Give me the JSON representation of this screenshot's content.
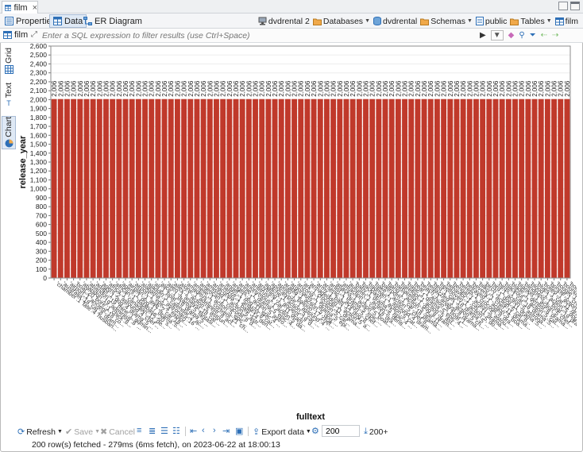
{
  "editor": {
    "tab_label": "film",
    "close_glyph": "×"
  },
  "subtabs": [
    {
      "label": "Properties",
      "icon": "properties-icon"
    },
    {
      "label": "Data",
      "icon": "data-grid-icon"
    },
    {
      "label": "ER Diagram",
      "icon": "er-diagram-icon"
    }
  ],
  "breadcrumbs": [
    {
      "label": "dvdrental 2",
      "icon": "connection-icon",
      "dropdown": false
    },
    {
      "label": "Databases",
      "icon": "folder-icon",
      "dropdown": true
    },
    {
      "label": "dvdrental",
      "icon": "database-icon",
      "dropdown": false
    },
    {
      "label": "Schemas",
      "icon": "folder-icon",
      "dropdown": true
    },
    {
      "label": "public",
      "icon": "schema-icon",
      "dropdown": false
    },
    {
      "label": "Tables",
      "icon": "folder-icon",
      "dropdown": true
    },
    {
      "label": "film",
      "icon": "table-icon",
      "dropdown": false
    }
  ],
  "filter": {
    "table_label": "film",
    "placeholder": "Enter a SQL expression to filter results (use Ctrl+Space)"
  },
  "sidetabs": [
    {
      "label": "Grid",
      "icon": "grid-icon",
      "active": false
    },
    {
      "label": "Text",
      "icon": "text-icon",
      "active": false
    },
    {
      "label": "Chart",
      "icon": "chart-icon",
      "active": true
    }
  ],
  "chart_data": {
    "type": "bar",
    "ylabel": "release_year",
    "xlabel": "fulltext",
    "ylim": [
      0,
      2600
    ],
    "ytick_step": 100,
    "bar_color": "#c0392b",
    "data_label": "2,006",
    "categories": [
      "'chamber':1 'fate':4 'husband':11 'italian':1 'monkey':16 'moo",
      "'australia':18 'cat':8 'drama':5 'epic':4 'explor':12 'moos",
      "'airport':1 'ancient':18 'confront':14 'epic':4 'girl':11 'moos",
      "'boat':20 'bore':1 'chick':8 'database':2 'moos':12 'reject",
      "'abandon':19 'administr':8 'batman':15 'beauti':4 'cat':11",
      "'abandon':19 'mine':1 'administr':8 'ancient':20 'crocodil':1",
      "'adapt':1 'dog':4 'drama':5 'fight':13 'moos':16 'mine",
      "'agent':2 'astound':4 'chef':16 'crocodil':11 'crocodil':12",
      "'africa':1 'canadian':12 'dentist':8 'epic':4 'fight':15",
      "'african':1 'database':20 'sumo':8 'hunt':2 'secret':14",
      "'agent':1 'dog':17 'drama':5 'fight':13 'mad':11 'scientist':12",
      "'airplan':1 'awe':2 'car':18 'escape':15 'lumberjack':11",
      "'airport':1 'epic':4 'explor':14 'frisbe':11 'girl':7",
      "'alabama':1 'astronaut':16 'baloon':17 'car':11 'epic':4",
      "'aladdin':1 'calendar':2 'action':5 'ancient':19 'fight':14",
      "'ali':1 'boat':19 'drama':5 'dentist':8 'epic':4 'forens':17",
      "'alice':1 'drama':5 'fantasia':2 'hunter':8 'moos':16",
      "'alien':1 'analyst':18 'cat':11 'database':2 'epic':4",
      "'alley':1 'action':5 'astound':4 'chase':10 'explor':14",
      "'alone':1 'administr':8 'action':5 'escape':15 'epic':4",
      "'amadeus':1 'convent':21 'chef':14 'dog':8 'epic':4",
      "'amelie':1 'action':5 'epic':4 'girl':7 'monkey':16",
      "'american':1 'crocodil':8 'drama':5 'fight':13 'mine':11",
      "'amistad':1 'action':5 'astronaut':16 'boat':19 'epic':4",
      "'anaconda':1 'battl':14 'dentist':8 'drama':5 'feminist':11",
      "'analyze':1 'analyst':8 'cat':11 'drama':5 'hunter':2",
      "'angel':1 'dog':11 'epic':4 'explor':14 'moos':7",
      "'angels':1 'action':5 'astronaut':8 'boat':19 'fight':14",
      "'annie':1 'drama':5 'epic':4 'forens':11 'girl':7",
      "'anonymous':1 'action':5 'database':8 'epic':4 'monkey':16",
      "'antitrust':1 'cat':11 'drama':5 'epic':4 'mine':8",
      "'anything':1 'ancient':19 'dentist':8 'fight':14 'moos':11",
      "'apache':1 'action':5 'car':18 'epic':4 'hunter':8",
      "'apocalypse':1 'astound':4 'drama':5 'explor':14 'girl':11",
      "'apollo':1 'baloon':17 'chef':8 'epic':4 'moos':11",
      "'arabia':1 'action':5 'dog':11 'feminist':8 'fight':14",
      "'argonauts':1 'drama':5 'epic':4 'mad':11 'scientist':12",
      "'arizona':1 'action':5 'cat':8 'epic':4 'explor':14",
      "'ark':1 'crocodil':11 'drama':5 'fight':13 'moos':8",
      "'armageddon':1 'action':5 'astronaut':16 'epic':4 'girl':11",
      "'army':1 'battl':14 'dog':8 'drama':5 'epic':4",
      "'arsenic':1 'action':5 'chef':11 'explor':14 'hunter':8",
      "'artist':1 'drama':5 'epic':4 'fight':13 'monkey':16",
      "'attacks':1 'action':5 'boat':19 'cat':8 'moos':11",
      "'attraction':1 'car':18 'drama':5 'epic':4 'girl':11",
      "'autumn':1 'action':5 'dentist':8 'fight':14 'moos':11",
      "'baby':1 'drama':5 'epic':4 'explor':14 'hunter':8",
      "'backlash':1 'action':5 'cat':11 'dog':8 'epic':4",
      "'badman':1 'astound':4 'drama':5 'fight':13 'girl':11",
      "'bake':1 'action':5 'chef':8 'epic':4 'moos':16",
      "'ballroom':1 'car':18 'drama':5 'explor':14 'hunter':8",
      "'bang':1 'action':5 'cat':11 'epic':4 'fight':14",
      "'barbarella':1 'dog':8 'drama':5 'epic':4 'moos':11",
      "'barefoot':1 'action':5 'astronaut':16 'girl':11 'monkey':8",
      "'basic':1 'drama':5 'epic':4 'explor':14 'feminist':8",
      "'bear':1 'action':5 'boat':19 'cat':11 'epic':4",
      "'beach':1 'analyst':8 'drama':5 'fight':13 'moos':11",
      "'bedazzled':1 'action':5 'chef':8 'epic':4 'girl':11",
      "'bed':1 'car':18 'drama':5 'explor':14 'hunter':8",
      "'beethoven':1 'action':5 'dog':8 'epic':4 'fight':14",
      "'behavior':1 'cat':11 'drama':5 'epic':4 'moos':16",
      "'bengal':1 'action':5 'astound':4 'girl':11 'explor':14",
      "'berets':1 'crocodil':8 'drama':5 'fight':13 'hunter':11",
      "'betrayed':1 'action':5 'boat':19 'epic':4 'moos':8",
      "'beverly':1 'chef':11 'drama':5 'epic':4 'girl':8",
      "'bilko':1 'action':5 'cat':8 'explor':14 'fight':13",
      "'birch':1 'dog':11 'drama':5 'epic':4 'monkey':16",
      "'bird':1 'action':5 'astronaut':16 'epic':4 'hunter':8",
      "'birds':1 'car':18 'drama':5 'explor':14 'moos':11",
      "'blackout':1 'action':5 'cat':11 'girl':8 'epic':4",
      "'blade':1 'dentist':8 'drama':5 'fight':13 'moos':11",
      "'blanket':1 'action':5 'chef':8 'epic':4 'explor':14",
      "'blindness':1 'boat':19 'drama':5 'epic':4 'girl':11",
      "'blood':1 'action':5 'dog':8 'fight':14 'hunter':11",
      "'blues':1 'cat':11 'drama':5 'epic':4 'moos':16",
      "'boiled':1 'action':5 'astound':4 'explor':14 'girl':8",
      "'bonnie':1 'crocodil':8 'drama':5 'epic':4 'fight':13",
      "'boogie':1 'action':5 'car':18 'hunter':8 'moos':11",
      "'boondock':1 'chef':11 'drama':5 'epic':4 'explor':14",
      "'bound':1 'action':5 'cat':8 'epic':4 'girl':11"
    ]
  },
  "toolbar": {
    "refresh": "Refresh",
    "save": "Save",
    "cancel": "Cancel",
    "export": "Export data",
    "fetch_size": "200",
    "fetch_more": "200+"
  },
  "status": {
    "text": "200 row(s) fetched - 279ms (6ms fetch), on 2023-06-22 at 18:00:13"
  },
  "colors": {
    "bar": "#c0392b",
    "active_tab": "#dfe9f5",
    "link_blue": "#2d6fb7"
  }
}
